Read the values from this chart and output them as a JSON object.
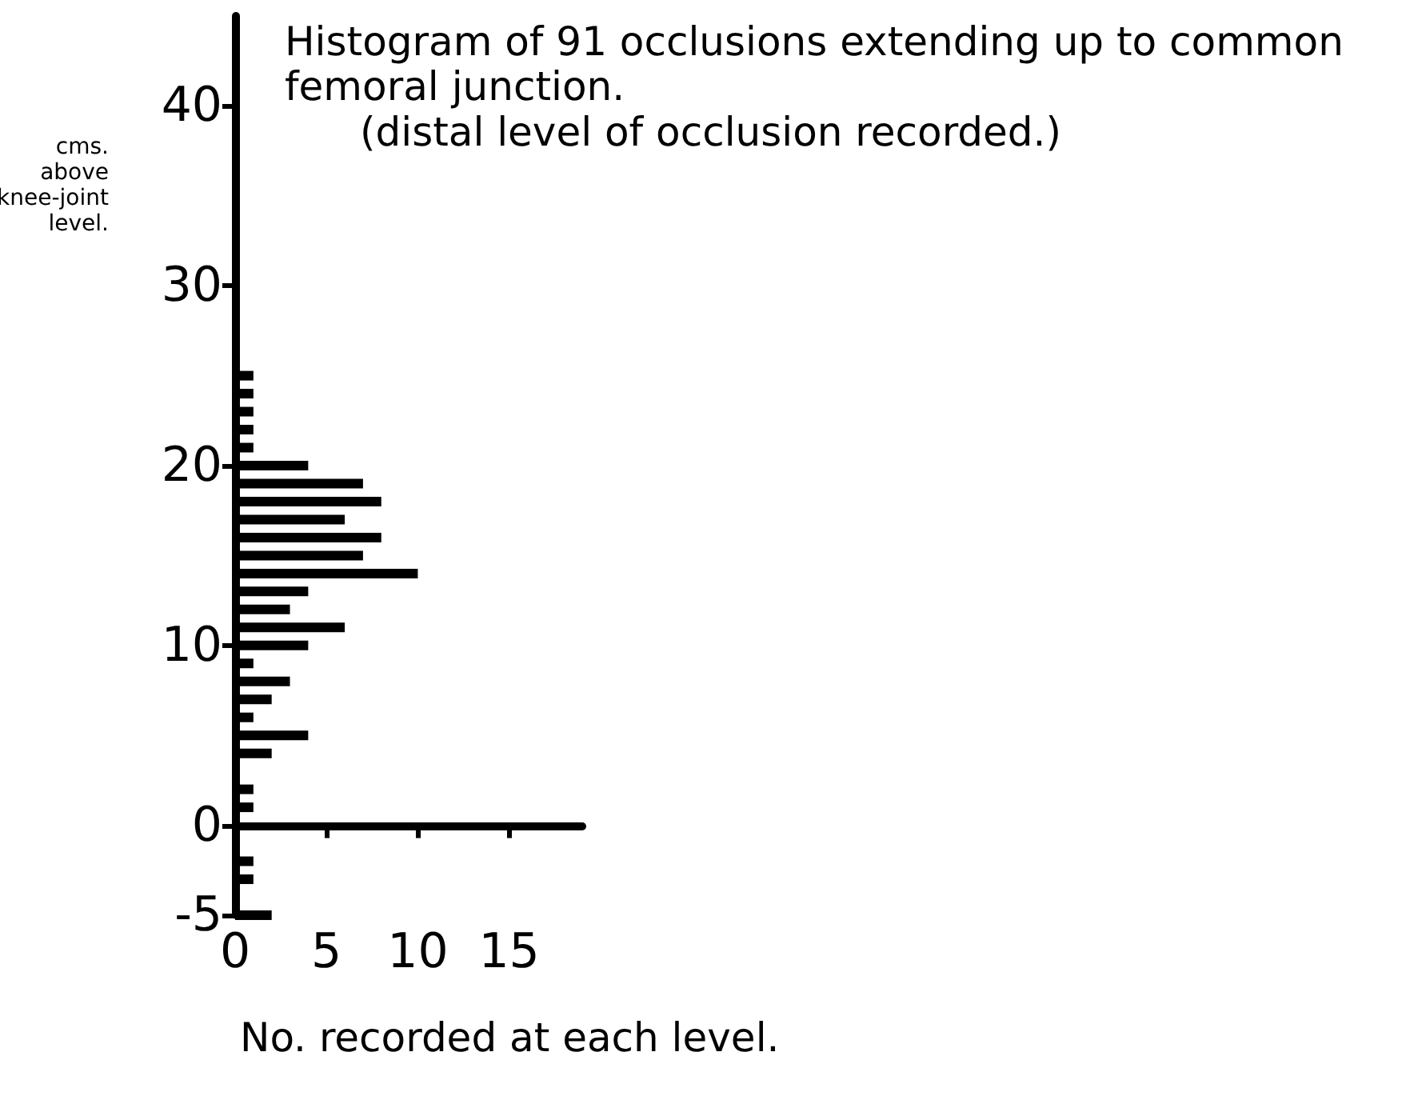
{
  "chart_data": {
    "type": "bar",
    "orientation": "horizontal",
    "title": "Histogram of 91 occlusions extending up to common femoral junction.",
    "subtitle": "(distal level of occlusion recorded.)",
    "xlabel": "No. recorded at each level.",
    "ylabel": "cms. above knee-joint level.",
    "x": [
      25,
      24,
      23,
      22,
      21,
      20,
      19,
      18,
      17,
      16,
      15,
      14,
      13,
      12,
      11,
      10,
      9,
      8,
      7,
      6,
      5,
      4,
      3,
      2,
      1,
      0,
      -1,
      -2,
      -3,
      -4,
      -5
    ],
    "values": [
      1,
      1,
      1,
      1,
      1,
      4,
      7,
      8,
      6,
      8,
      7,
      10,
      4,
      3,
      6,
      4,
      1,
      3,
      2,
      1,
      4,
      2,
      0,
      1,
      1,
      0,
      0,
      1,
      1,
      0,
      2
    ],
    "color": "#000000",
    "xlim": [
      0,
      19
    ],
    "xticks": [
      0,
      5,
      10,
      15
    ],
    "ylim": [
      -5,
      45
    ],
    "yticks": [
      -5,
      0,
      10,
      20,
      30,
      40
    ],
    "grid": false
  }
}
